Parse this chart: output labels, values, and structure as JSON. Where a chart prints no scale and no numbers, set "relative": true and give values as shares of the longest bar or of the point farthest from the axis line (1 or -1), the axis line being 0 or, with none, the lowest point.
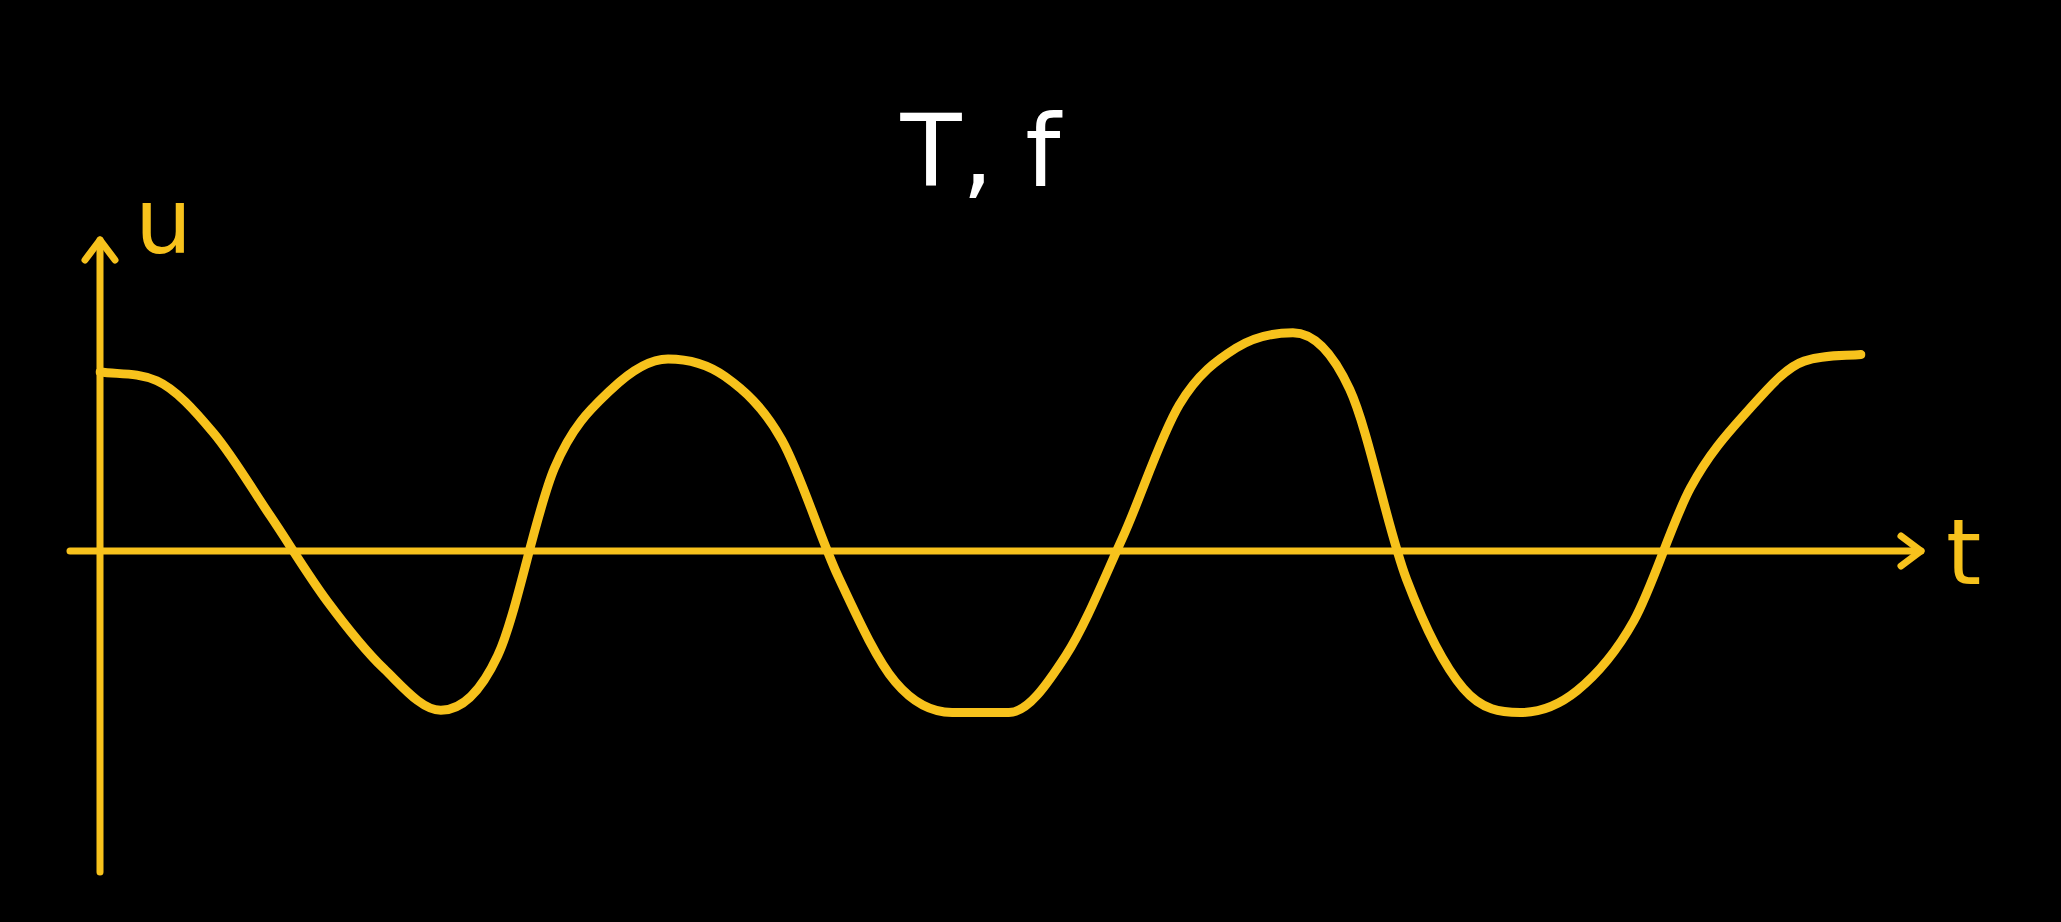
{
  "chart_data": {
    "type": "line",
    "title": "T, f",
    "xlabel": "t",
    "ylabel": "u",
    "relative": true,
    "legend": false,
    "ref_lines": [
      {
        "axis": "y",
        "value": 0,
        "color": "#f7c21c"
      }
    ],
    "marker": "none",
    "line_style": "solid",
    "categories": [
      null,
      null,
      null,
      null,
      null,
      null,
      null,
      null,
      null,
      null,
      null,
      null,
      null,
      null,
      null,
      null,
      null,
      null,
      null,
      null,
      null,
      null,
      null,
      null,
      null,
      null,
      null,
      null,
      null,
      null,
      null,
      null
    ],
    "series": [
      {
        "color": "#f7c21c",
        "values": [
          0.82,
          0.78,
          0.54,
          0.16,
          -0.23,
          -0.54,
          -0.73,
          -0.48,
          0.38,
          0.74,
          0.88,
          0.8,
          0.51,
          -0.12,
          -0.6,
          -0.74,
          -0.74,
          -0.48,
          0.06,
          0.67,
          0.93,
          1,
          0.74,
          -0.13,
          -0.63,
          -0.74,
          -0.64,
          -0.32,
          0.29,
          0.64,
          0.87,
          0.9
        ]
      }
    ]
  }
}
